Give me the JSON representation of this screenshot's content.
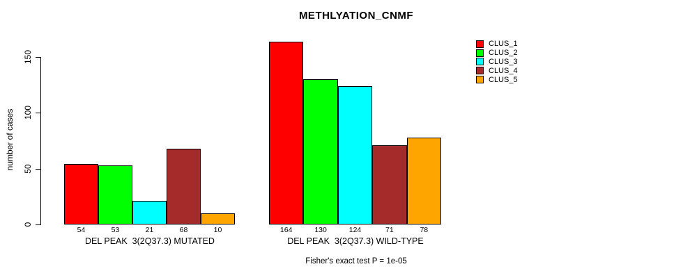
{
  "chart": {
    "background": "#FFFFFF",
    "axis_color": "#000000",
    "title": "METHLYATION_CNMF",
    "ylabel": "number of cases",
    "annotation": "Fisher's exact test P = 1e-05"
  },
  "chart_data": {
    "type": "bar",
    "title": "METHLYATION_CNMF",
    "xlabel": "",
    "ylabel": "number of cases",
    "ylim": [
      0,
      170
    ],
    "yticks": [
      0,
      50,
      100,
      150
    ],
    "grid": false,
    "legend_position": "top-right",
    "categories": [
      "DEL PEAK  3(2Q37.3) MUTATED",
      "DEL PEAK  3(2Q37.3) WILD-TYPE"
    ],
    "series": [
      {
        "name": "CLUS_1",
        "color": "#FF0000",
        "values": [
          54,
          164
        ]
      },
      {
        "name": "CLUS_2",
        "color": "#00FF00",
        "values": [
          53,
          130
        ]
      },
      {
        "name": "CLUS_3",
        "color": "#00FFFF",
        "values": [
          21,
          124
        ]
      },
      {
        "name": "CLUS_4",
        "color": "#A52A2A",
        "values": [
          68,
          71
        ]
      },
      {
        "name": "CLUS_5",
        "color": "#FFA500",
        "values": [
          10,
          78
        ]
      }
    ],
    "bar_value_labels": [
      [
        54,
        53,
        21,
        68,
        10
      ],
      [
        164,
        130,
        124,
        71,
        78
      ]
    ],
    "annotation": "Fisher's exact test P = 1e-05"
  }
}
